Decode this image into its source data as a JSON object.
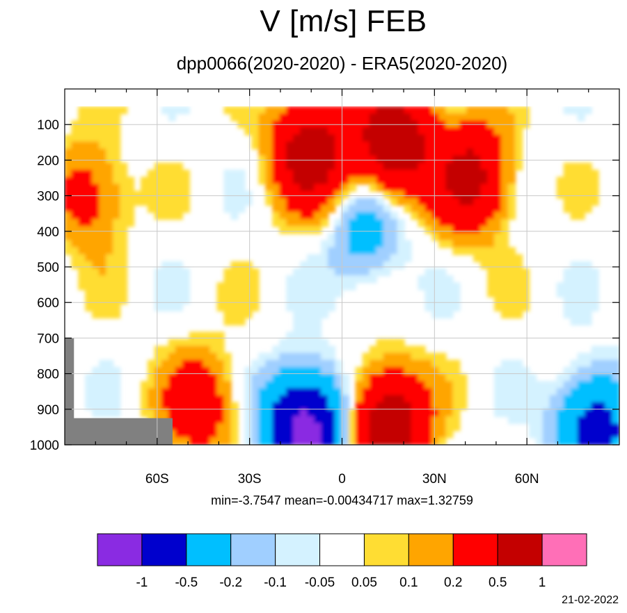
{
  "title": "V [m/s] FEB",
  "subtitle": "dpp0066(2020-2020) - ERA5(2020-2020)",
  "stats": "min=-3.7547   mean=-0.00434717   max=1.32759",
  "date": "21-02-2022",
  "chart_data": {
    "type": "heatmap",
    "kind": "latitude-pressure contour (filled)",
    "title": "V [m/s] FEB",
    "subtitle": "dpp0066(2020-2020) - ERA5(2020-2020)",
    "xlabel": "",
    "ylabel": "",
    "x_axis": {
      "quantity": "latitude",
      "range": [
        -90,
        90
      ],
      "ticks": [
        -60,
        -30,
        0,
        30,
        60
      ],
      "tick_labels": [
        "60S",
        "30S",
        "0",
        "30N",
        "60N"
      ],
      "grid": true
    },
    "y_axis": {
      "quantity": "pressure (hPa)",
      "range": [
        0,
        1000
      ],
      "reversed": true,
      "ticks": [
        100,
        200,
        300,
        400,
        500,
        600,
        700,
        800,
        900,
        1000
      ],
      "tick_labels": [
        "100",
        "200",
        "300",
        "400",
        "500",
        "600",
        "700",
        "800",
        "900",
        "1000"
      ],
      "grid": true
    },
    "contour_levels": [
      -1,
      -0.5,
      -0.2,
      -0.1,
      -0.05,
      0.05,
      0.1,
      0.2,
      0.5,
      1
    ],
    "colorbar": {
      "colors": [
        "#8a2be2",
        "#0000cd",
        "#00bfff",
        "#a0cfff",
        "#d4f2ff",
        "#ffffff",
        "#ffdd33",
        "#ffa500",
        "#ff0000",
        "#c40000",
        "#ff6fb7"
      ],
      "labels": [
        "-1",
        "-0.5",
        "-0.2",
        "-0.1",
        "-0.05",
        "0.05",
        "0.1",
        "0.2",
        "0.5",
        "1"
      ],
      "placement": "bottom"
    },
    "missing_color": "#808080",
    "features": [
      {
        "name": "south-polar-positive",
        "lat": -82,
        "p": 300,
        "value": 0.3
      },
      {
        "name": "subtropical-south-max",
        "lat": -10,
        "p": 180,
        "value": 0.7
      },
      {
        "name": "equatorial-upper-max",
        "lat": 17,
        "p": 150,
        "value": 0.8
      },
      {
        "name": "northern-jet-max",
        "lat": 42,
        "p": 250,
        "value": 0.6
      },
      {
        "name": "equatorial-negative-column",
        "lat": 8,
        "p": 400,
        "value": -0.3
      },
      {
        "name": "southern-surface-negative",
        "lat": -12,
        "p": 960,
        "value": -1.2
      },
      {
        "name": "equatorial-surface-max",
        "lat": 15,
        "p": 950,
        "value": 0.8
      },
      {
        "name": "south-midlat-low-max",
        "lat": -46,
        "p": 890,
        "value": 0.35
      },
      {
        "name": "north-polar-surface-negative",
        "lat": 82,
        "p": 960,
        "value": -0.7
      }
    ],
    "stats": {
      "min": -3.7547,
      "mean": -0.00434717,
      "max": 1.32759
    }
  }
}
